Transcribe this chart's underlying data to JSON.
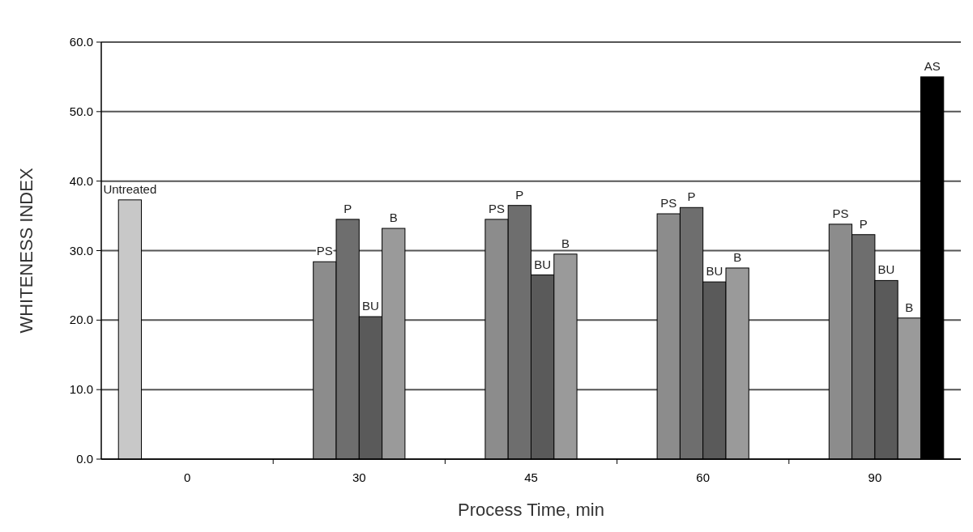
{
  "chart_data": {
    "type": "bar",
    "xlabel": "Process Time, min",
    "ylabel": "WHITENESS INDEX",
    "categories": [
      "0",
      "30",
      "45",
      "60",
      "90"
    ],
    "series": [
      {
        "name": "Untreated",
        "color": "#c8c8c8",
        "values": [
          37.3,
          null,
          null,
          null,
          null
        ]
      },
      {
        "name": "PS",
        "color": "#8c8c8c",
        "values": [
          null,
          28.4,
          34.5,
          35.3,
          33.8
        ]
      },
      {
        "name": "P",
        "color": "#6e6e6e",
        "values": [
          null,
          34.5,
          36.5,
          36.2,
          32.3
        ]
      },
      {
        "name": "BU",
        "color": "#5a5a5a",
        "values": [
          null,
          20.5,
          26.5,
          25.5,
          25.7
        ]
      },
      {
        "name": "B",
        "color": "#9a9a9a",
        "values": [
          null,
          33.2,
          29.5,
          27.5,
          20.3
        ]
      },
      {
        "name": "AS",
        "color": "#000000",
        "values": [
          null,
          null,
          null,
          null,
          55.0
        ]
      }
    ],
    "ylim": [
      0,
      60
    ],
    "yticks": [
      {
        "value": 0,
        "label": "0.0"
      },
      {
        "value": 10,
        "label": "10.0"
      },
      {
        "value": 20,
        "label": "20.0"
      },
      {
        "value": 30,
        "label": "30.0"
      },
      {
        "value": 40,
        "label": "40.0"
      },
      {
        "value": 50,
        "label": "50.0"
      },
      {
        "value": 60,
        "label": "60.0"
      }
    ],
    "grid": "y",
    "legend": false
  }
}
